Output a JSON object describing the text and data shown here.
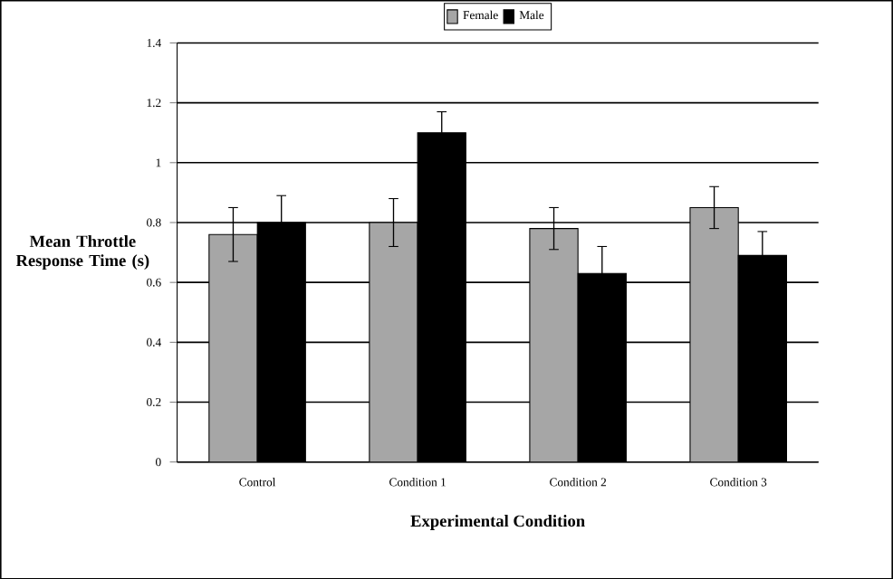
{
  "chart_data": {
    "type": "bar",
    "xlabel": "Experimental Condition",
    "ylabel": "Mean Throttle Response Time (s)",
    "categories": [
      "Control",
      "Condition 1",
      "Condition 2",
      "Condition 3"
    ],
    "series": [
      {
        "name": "Female",
        "color": "#a6a6a6",
        "values": [
          0.76,
          0.8,
          0.78,
          0.85
        ],
        "errors": [
          0.09,
          0.08,
          0.07,
          0.07
        ]
      },
      {
        "name": "Male",
        "color": "#000000",
        "values": [
          0.8,
          1.1,
          0.63,
          0.69
        ],
        "errors": [
          0.09,
          0.07,
          0.09,
          0.08
        ]
      }
    ],
    "ylim": [
      0,
      1.4
    ],
    "yticks": [
      0,
      0.2,
      0.4,
      0.6,
      0.8,
      1,
      1.2,
      1.4
    ],
    "grid": "y",
    "legend": "top"
  }
}
